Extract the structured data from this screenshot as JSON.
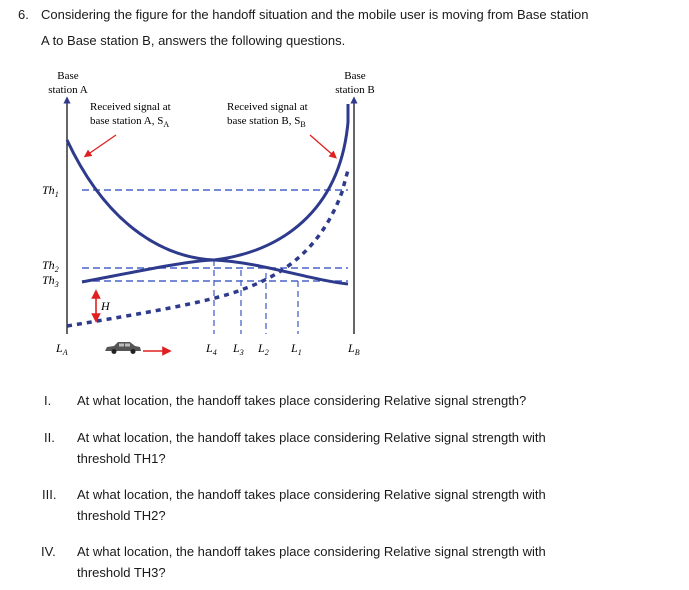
{
  "question": {
    "number": "6.",
    "line1": "Considering the figure for the handoff situation and the mobile user is moving from Base station",
    "line2": "A to Base station B, answers the following questions."
  },
  "figure": {
    "base_a_line1": "Base",
    "base_a_line2": "station A",
    "base_b_line1": "Base",
    "base_b_line2": "station B",
    "signal_a_line1": "Received signal at",
    "signal_a_line2": "base station A, S",
    "signal_a_sub": "A",
    "signal_b_line1": "Received signal at",
    "signal_b_line2": "base station B, S",
    "signal_b_sub": "B",
    "th1": "Th",
    "th1_sub": "1",
    "th2": "Th",
    "th2_sub": "2",
    "th3": "Th",
    "th3_sub": "3",
    "h_label": "H",
    "la": "L",
    "la_sub": "A",
    "l4": "L",
    "l4_sub": "4",
    "l3": "L",
    "l3_sub": "3",
    "l2": "L",
    "l2_sub": "2",
    "l1": "L",
    "l1_sub": "1",
    "lb": "L",
    "lb_sub": "B",
    "colors": {
      "curve": "#2e3a8c",
      "dashed": "#4a64c8",
      "arrow_red": "#e02020",
      "car": "#444444"
    },
    "icons": [
      "car-icon",
      "right-arrow-icon"
    ]
  },
  "sub_questions": [
    {
      "numeral": "I.",
      "lines": [
        "At what location, the handoff takes place considering Relative signal strength?"
      ]
    },
    {
      "numeral": "II.",
      "lines": [
        "At what location, the handoff takes place considering Relative signal strength with",
        "threshold TH1?"
      ]
    },
    {
      "numeral": "III.",
      "lines": [
        "At what location, the handoff takes place considering Relative signal strength with",
        "threshold TH2?"
      ]
    },
    {
      "numeral": "IV.",
      "lines": [
        "At what location, the handoff takes place considering Relative signal strength with",
        "threshold TH3?"
      ]
    }
  ]
}
